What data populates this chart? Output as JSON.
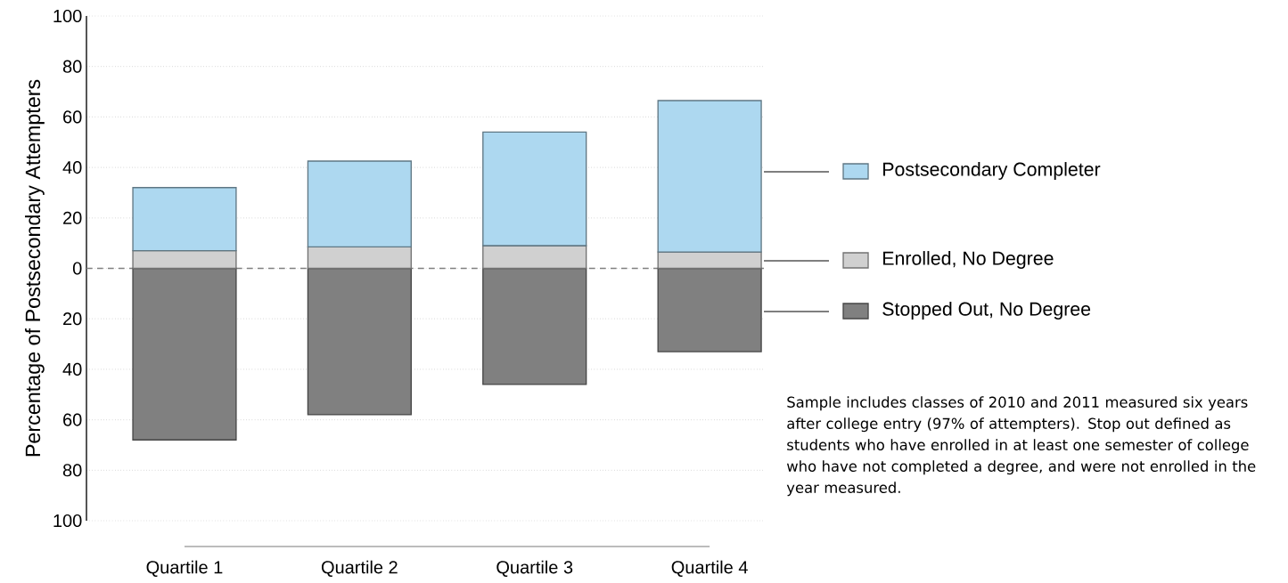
{
  "chart_data": {
    "type": "bar",
    "stacked": true,
    "ylabel": "Percentage of Postsecondary Attempters",
    "categories": [
      "Quartile 1",
      "Quartile 2",
      "Quartile 3",
      "Quartile 4"
    ],
    "series": [
      {
        "name": "Stopped Out, No Degree",
        "color": "#808080",
        "values": [
          -68,
          -58,
          -46,
          -33
        ]
      },
      {
        "name": "Enrolled, No Degree",
        "color": "#d0d0d0",
        "values": [
          7,
          8.5,
          9,
          6.5
        ]
      },
      {
        "name": "Postsecondary Completer",
        "color": "#add8f0",
        "values": [
          25,
          34,
          45,
          60
        ]
      }
    ],
    "ylim": [
      -100,
      100
    ],
    "yticks": [
      {
        "value": -100,
        "label": "100"
      },
      {
        "value": -80,
        "label": "80"
      },
      {
        "value": -60,
        "label": "60"
      },
      {
        "value": -40,
        "label": "40"
      },
      {
        "value": -20,
        "label": "20"
      },
      0,
      20,
      40,
      60,
      80,
      100
    ],
    "grid": "y",
    "legend": "right",
    "ref_lines": [
      {
        "axis": "y",
        "value": 0,
        "color": "#808080",
        "line_style": "dashed"
      }
    ],
    "annotations": [
      "Sample includes classes of 2010 and 2011 measured six years after college entry (97% of attempters). Stop out defined as students who have enrolled in at least one semester of college who have not completed a degree, and were not enrolled in the year measured."
    ]
  }
}
